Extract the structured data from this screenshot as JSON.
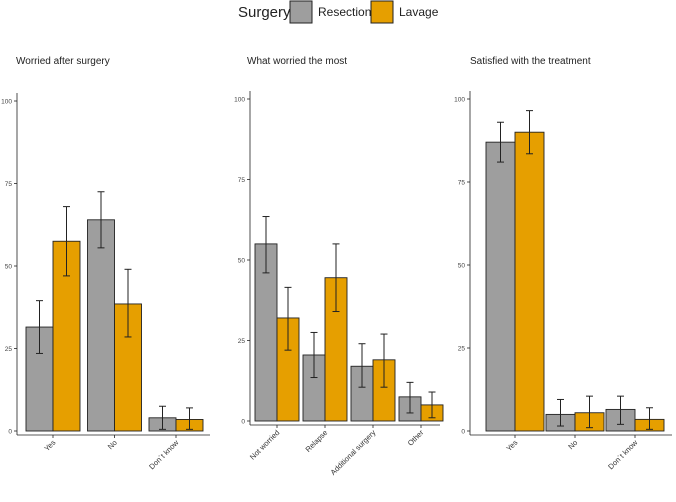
{
  "legend": {
    "title": "Surgery",
    "entries": [
      {
        "name": "Resection",
        "color": "#9e9e9e"
      },
      {
        "name": "Lavage",
        "color": "#e69f00"
      }
    ]
  },
  "chart_data": [
    {
      "type": "bar",
      "title": "Worried after surgery",
      "categories": [
        "Yes",
        "No",
        "Don´t know"
      ],
      "ylim": [
        0,
        100
      ],
      "yticks": [
        0,
        25,
        50,
        75,
        100
      ],
      "series": [
        {
          "name": "Resection",
          "values": [
            31.5,
            64,
            4
          ],
          "err_low": [
            23.5,
            55.5,
            0.5
          ],
          "err_high": [
            39.5,
            72.5,
            7.5
          ]
        },
        {
          "name": "Lavage",
          "values": [
            57.5,
            38.5,
            3.5
          ],
          "err_low": [
            47,
            28.5,
            0.5
          ],
          "err_high": [
            68,
            49,
            7
          ]
        }
      ]
    },
    {
      "type": "bar",
      "title": "What worried the most",
      "categories": [
        "Not worried",
        "Relapse",
        "Additional surgery",
        "Other"
      ],
      "ylim": [
        0,
        100
      ],
      "yticks": [
        0,
        25,
        50,
        75,
        100
      ],
      "series": [
        {
          "name": "Resection",
          "values": [
            55,
            20.5,
            17,
            7.5
          ],
          "err_low": [
            46,
            13.5,
            10.5,
            2.5
          ],
          "err_high": [
            63.5,
            27.5,
            24,
            12
          ]
        },
        {
          "name": "Lavage",
          "values": [
            32,
            44.5,
            19,
            5
          ],
          "err_low": [
            22,
            34,
            10.5,
            1
          ],
          "err_high": [
            41.5,
            55,
            27,
            9
          ]
        }
      ]
    },
    {
      "type": "bar",
      "title": "Satisfied with the treatment",
      "categories": [
        "Yes",
        "No",
        "Don´t know"
      ],
      "ylim": [
        0,
        100
      ],
      "yticks": [
        0,
        25,
        50,
        75,
        100
      ],
      "series": [
        {
          "name": "Resection",
          "values": [
            87,
            5,
            6.5
          ],
          "err_low": [
            81,
            1.5,
            2
          ],
          "err_high": [
            93,
            9.5,
            10.5
          ]
        },
        {
          "name": "Lavage",
          "values": [
            90,
            5.5,
            3.5
          ],
          "err_low": [
            83.5,
            1,
            0.5
          ],
          "err_high": [
            96.5,
            10.5,
            7
          ]
        }
      ]
    }
  ]
}
